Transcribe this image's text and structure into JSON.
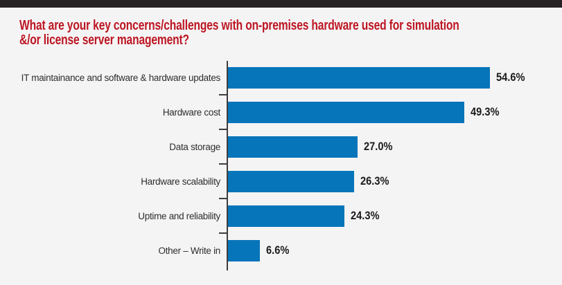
{
  "page": {
    "background_color": "#f5f4f5",
    "top_bar_color": "#272223"
  },
  "title": {
    "line1": "What are your key concerns/challenges with on-premises hardware used for simulation",
    "line2": "&/or license server management?",
    "color": "#bc1622"
  },
  "chart_data": {
    "type": "bar",
    "orientation": "horizontal",
    "title": "What are your key concerns/challenges with on-premises hardware used for simulation &/or license server management?",
    "categories": [
      "IT maintainance and software & hardware updates",
      "Hardware cost",
      "Data storage",
      "Hardware scalability",
      "Uptime and reliability",
      "Other – Write in"
    ],
    "values": [
      54.6,
      49.3,
      27.0,
      26.3,
      24.3,
      6.6
    ],
    "value_labels": [
      "54.6%",
      "49.3%",
      "27.0%",
      "26.3%",
      "24.3%",
      "6.6%"
    ],
    "xlabel": "",
    "ylabel": "",
    "xlim": [
      0,
      58
    ],
    "grid": false,
    "legend": false,
    "bar_color": "#0775ba",
    "axis_color": "#403c3d",
    "value_label_color": "#1c1b1b",
    "category_label_color": "#2d2d2d"
  }
}
